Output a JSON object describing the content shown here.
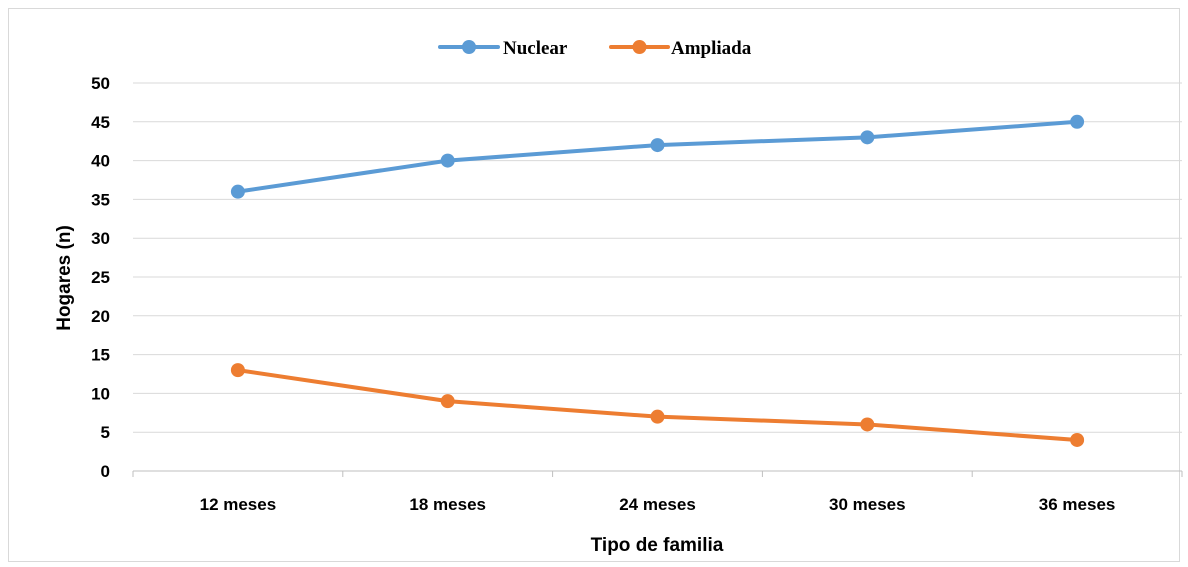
{
  "chart_data": {
    "type": "line",
    "title": "",
    "xlabel": "Tipo de familia",
    "ylabel": "Hogares (n)",
    "categories": [
      "12 meses",
      "18 meses",
      "24 meses",
      "30 meses",
      "36 meses"
    ],
    "yticks": [
      "0",
      "5",
      "10",
      "15",
      "20",
      "25",
      "30",
      "35",
      "40",
      "45",
      "50"
    ],
    "ylim": [
      0,
      50
    ],
    "grid": true,
    "legend_position": "top",
    "series": [
      {
        "name": "Nuclear",
        "color": "#5b9bd5",
        "values": [
          36,
          40,
          42,
          43,
          45
        ]
      },
      {
        "name": "Ampliada",
        "color": "#ed7d31",
        "values": [
          13,
          9,
          7,
          6,
          4
        ]
      }
    ]
  }
}
